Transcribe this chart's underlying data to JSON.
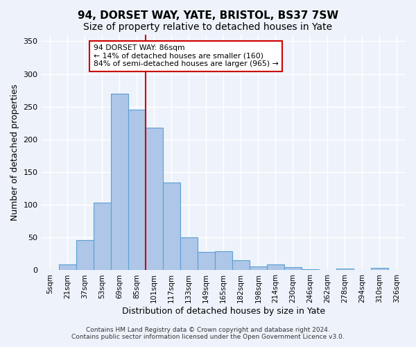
{
  "title": "94, DORSET WAY, YATE, BRISTOL, BS37 7SW",
  "subtitle": "Size of property relative to detached houses in Yate",
  "xlabel": "Distribution of detached houses by size in Yate",
  "ylabel": "Number of detached properties",
  "footer_line1": "Contains HM Land Registry data © Crown copyright and database right 2024.",
  "footer_line2": "Contains public sector information licensed under the Open Government Licence v3.0.",
  "categories": [
    "5sqm",
    "21sqm",
    "37sqm",
    "53sqm",
    "69sqm",
    "85sqm",
    "101sqm",
    "117sqm",
    "133sqm",
    "149sqm",
    "165sqm",
    "182sqm",
    "198sqm",
    "214sqm",
    "230sqm",
    "246sqm",
    "262sqm",
    "278sqm",
    "294sqm",
    "310sqm",
    "326sqm"
  ],
  "bar_values": [
    0,
    9,
    46,
    103,
    270,
    245,
    218,
    134,
    50,
    28,
    29,
    15,
    6,
    9,
    5,
    2,
    0,
    3,
    0,
    4,
    0
  ],
  "bar_color": "#aec6e8",
  "bar_edge_color": "#5a9fd4",
  "ylim": [
    0,
    360
  ],
  "yticks": [
    0,
    50,
    100,
    150,
    200,
    250,
    300,
    350
  ],
  "annotation_text": "94 DORSET WAY: 86sqm\n← 14% of detached houses are smaller (160)\n84% of semi-detached houses are larger (965) →",
  "annotation_box_color": "#ffffff",
  "annotation_border_color": "#cc0000",
  "background_color": "#eef3fb",
  "grid_color": "#ffffff",
  "title_fontsize": 11,
  "subtitle_fontsize": 10,
  "axis_fontsize": 9
}
